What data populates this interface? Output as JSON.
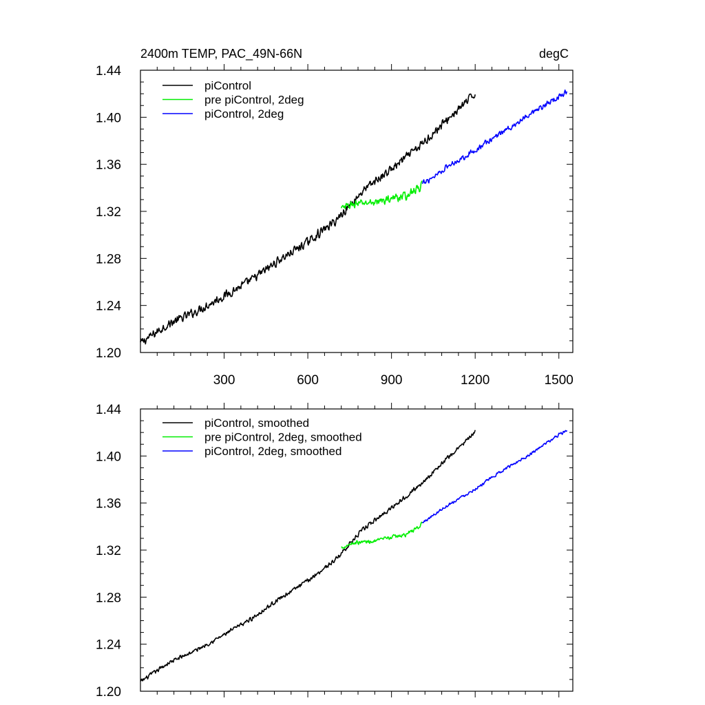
{
  "chart_data": [
    {
      "type": "line",
      "title": "2400m TEMP, PAC_49N-66N",
      "units": "degC",
      "xlabel": "",
      "ylabel": "",
      "xlim": [
        0,
        1550
      ],
      "ylim": [
        1.2,
        1.44
      ],
      "xticks": [
        "300",
        "600",
        "900",
        "1200",
        "1500"
      ],
      "yticks": [
        "1.20",
        "1.24",
        "1.28",
        "1.32",
        "1.36",
        "1.40",
        "1.44"
      ],
      "legend_position": "top-left",
      "series": [
        {
          "name": "piControl",
          "color": "#000000",
          "x": [
            0,
            100,
            200,
            300,
            400,
            500,
            600,
            700,
            730,
            800,
            900,
            1000,
            1100,
            1200
          ],
          "y": [
            1.208,
            1.224,
            1.235,
            1.248,
            1.262,
            1.279,
            1.294,
            1.312,
            1.32,
            1.338,
            1.356,
            1.375,
            1.398,
            1.42
          ],
          "noise": 0.0045
        },
        {
          "name": "pre piControl, 2deg",
          "color": "#00ee00",
          "x": [
            720,
            760,
            800,
            850,
            900,
            950,
            1000,
            1010
          ],
          "y": [
            1.322,
            1.326,
            1.327,
            1.328,
            1.331,
            1.333,
            1.34,
            1.343
          ],
          "noise": 0.004
        },
        {
          "name": "piControl, 2deg",
          "color": "#0000ff",
          "x": [
            1010,
            1100,
            1200,
            1300,
            1400,
            1500,
            1530
          ],
          "y": [
            1.343,
            1.358,
            1.372,
            1.388,
            1.402,
            1.418,
            1.422
          ],
          "noise": 0.003
        }
      ]
    },
    {
      "type": "line",
      "title": "",
      "xlabel": "",
      "ylabel": "",
      "xlim": [
        0,
        1550
      ],
      "ylim": [
        1.2,
        1.44
      ],
      "xticks": [],
      "yticks": [
        "1.20",
        "1.24",
        "1.28",
        "1.32",
        "1.36",
        "1.40",
        "1.44"
      ],
      "legend_position": "top-left",
      "series": [
        {
          "name": "piControl, smoothed",
          "color": "#000000",
          "x": [
            0,
            100,
            200,
            300,
            400,
            500,
            600,
            700,
            730,
            800,
            900,
            1000,
            1100,
            1200
          ],
          "y": [
            1.208,
            1.224,
            1.235,
            1.248,
            1.262,
            1.279,
            1.294,
            1.312,
            1.32,
            1.338,
            1.356,
            1.375,
            1.398,
            1.42
          ],
          "noise": 0.0022
        },
        {
          "name": "pre piControl, 2deg, smoothed",
          "color": "#00ee00",
          "x": [
            720,
            760,
            800,
            850,
            900,
            950,
            1000,
            1010
          ],
          "y": [
            1.322,
            1.326,
            1.327,
            1.328,
            1.331,
            1.333,
            1.34,
            1.343
          ],
          "noise": 0.002
        },
        {
          "name": "piControl, 2deg, smoothed",
          "color": "#0000ff",
          "x": [
            1010,
            1100,
            1200,
            1300,
            1400,
            1500,
            1530
          ],
          "y": [
            1.343,
            1.358,
            1.372,
            1.388,
            1.402,
            1.418,
            1.422
          ],
          "noise": 0.0015
        }
      ]
    }
  ]
}
